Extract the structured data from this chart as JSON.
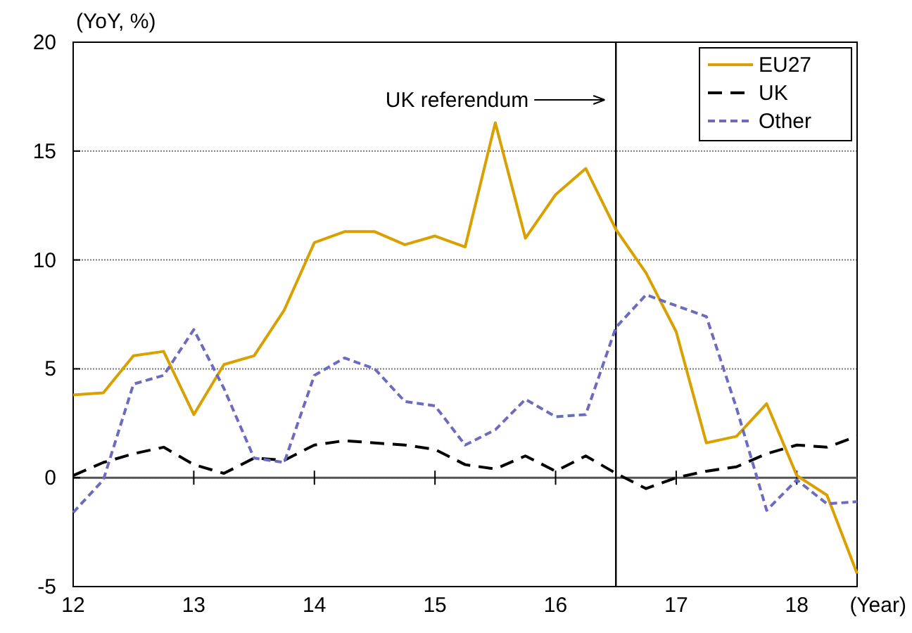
{
  "chart_data": {
    "type": "line",
    "xlabel": "(Year)",
    "ylabel": "(YoY, %)",
    "x": [
      12,
      12.25,
      12.5,
      12.75,
      13,
      13.25,
      13.5,
      13.75,
      14,
      14.25,
      14.5,
      14.75,
      15,
      15.25,
      15.5,
      15.75,
      16,
      16.25,
      16.5,
      16.75,
      17,
      17.25,
      17.5,
      17.75,
      18,
      18.25,
      18.5
    ],
    "series": [
      {
        "name": "EU27",
        "color": "#d9a000",
        "line_style": "solid",
        "values": [
          3.8,
          3.9,
          5.6,
          5.8,
          2.9,
          5.2,
          5.6,
          7.7,
          10.8,
          11.3,
          11.3,
          10.7,
          11.1,
          10.6,
          16.3,
          11.0,
          13.0,
          14.2,
          11.4,
          9.4,
          6.7,
          1.6,
          1.9,
          3.4,
          0.1,
          -0.8,
          -4.4
        ]
      },
      {
        "name": "UK",
        "color": "#000000",
        "line_style": "dashed",
        "values": [
          0.1,
          0.7,
          1.1,
          1.4,
          0.6,
          0.2,
          0.9,
          0.8,
          1.5,
          1.7,
          1.6,
          1.5,
          1.3,
          0.6,
          0.4,
          1.0,
          0.3,
          1.0,
          0.2,
          -0.5,
          0.0,
          0.3,
          0.5,
          1.1,
          1.5,
          1.4,
          1.9
        ]
      },
      {
        "name": "Other",
        "color": "#6b6bbf",
        "line_style": "dotted",
        "values": [
          -1.6,
          -0.1,
          4.3,
          4.7,
          6.8,
          4.1,
          0.9,
          0.7,
          4.7,
          5.5,
          5.0,
          3.5,
          3.3,
          1.5,
          2.2,
          3.6,
          2.8,
          2.9,
          6.9,
          8.4,
          7.9,
          7.4,
          3.2,
          -1.5,
          -0.1,
          -1.2,
          -1.1
        ]
      }
    ],
    "xlim": [
      12,
      18.5
    ],
    "xticks": [
      12,
      13,
      14,
      15,
      16,
      17,
      18
    ],
    "ylim": [
      -5,
      20
    ],
    "yticks": [
      -5,
      0,
      5,
      10,
      15,
      20
    ],
    "grid": "y",
    "legend": "top right",
    "ref_lines": [
      {
        "axis": "x",
        "value": 16.5,
        "label": "UK referendum",
        "color": "#000000"
      }
    ]
  }
}
